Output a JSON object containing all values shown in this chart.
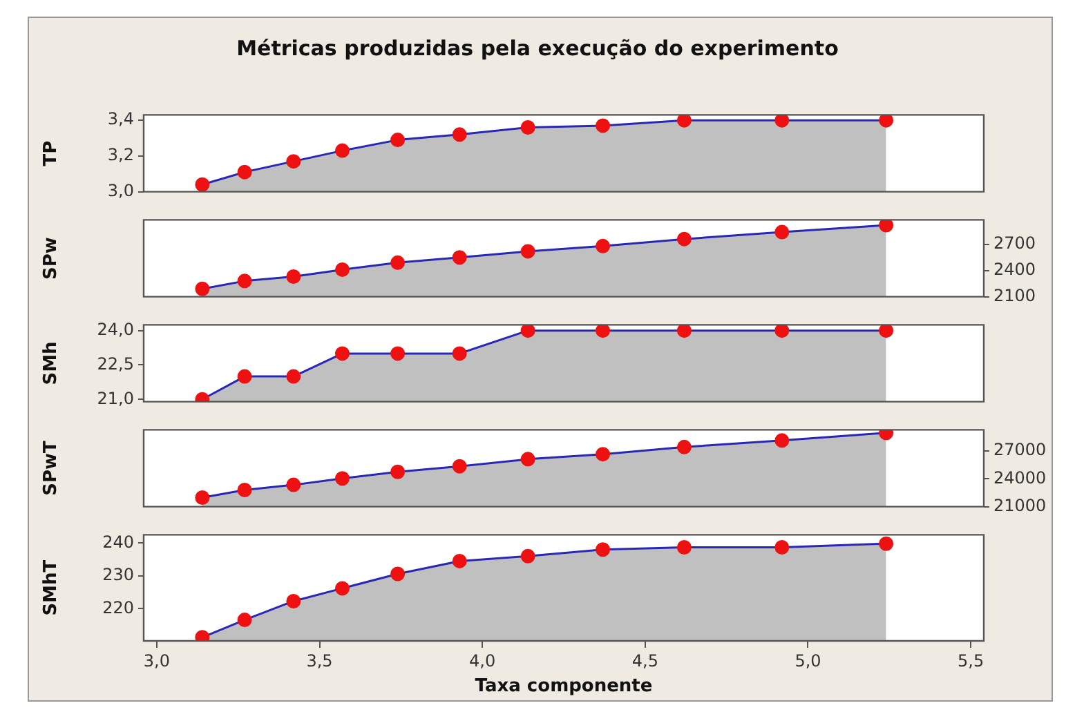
{
  "chart_data": [
    {
      "type": "area",
      "title": "Métricas produzidas pela execução do experimento",
      "ylabel": "TP",
      "x": [
        3.14,
        3.27,
        3.42,
        3.57,
        3.74,
        3.93,
        4.14,
        4.37,
        4.62,
        4.92,
        5.24
      ],
      "series": [
        {
          "color": "#c0c0c0",
          "values": [
            3.04,
            3.11,
            3.17,
            3.23,
            3.29,
            3.32,
            3.36,
            3.37,
            3.4,
            3.4,
            3.4
          ]
        }
      ],
      "xlim": [
        2.96,
        5.54
      ],
      "ylim": [
        3.0,
        3.43
      ],
      "yticks": [
        {
          "value": 3.0,
          "label": "3,0"
        },
        {
          "value": 3.2,
          "label": "3,2"
        },
        {
          "value": 3.4,
          "label": "3,4"
        }
      ],
      "marker": "circle",
      "tick_labels": "y"
    },
    {
      "type": "area",
      "ylabel": "SPw",
      "x": [
        3.14,
        3.27,
        3.42,
        3.57,
        3.74,
        3.93,
        4.14,
        4.37,
        4.62,
        4.92,
        5.24
      ],
      "series": [
        {
          "color": "#c0c0c0",
          "axis": "y2",
          "values": [
            2190,
            2280,
            2330,
            2410,
            2490,
            2550,
            2620,
            2680,
            2760,
            2840,
            2920
          ]
        }
      ],
      "xlim": [
        2.96,
        5.54
      ],
      "y2lim": [
        2100,
        2980
      ],
      "y2ticks": [
        2100,
        2400,
        2700
      ],
      "marker": "circle",
      "tick_labels": "y"
    },
    {
      "type": "area",
      "ylabel": "SMh",
      "x": [
        3.14,
        3.27,
        3.42,
        3.57,
        3.74,
        3.93,
        4.14,
        4.37,
        4.62,
        4.92,
        5.24
      ],
      "series": [
        {
          "color": "#c0c0c0",
          "values": [
            21,
            22,
            22,
            23,
            23,
            23,
            24,
            24,
            24,
            24,
            24
          ]
        }
      ],
      "xlim": [
        2.96,
        5.54
      ],
      "ylim": [
        20.9,
        24.25
      ],
      "yticks": [
        {
          "value": 21,
          "label": "21,0"
        },
        {
          "value": 22.5,
          "label": "22,5"
        },
        {
          "value": 24,
          "label": "24,0"
        }
      ],
      "marker": "circle",
      "tick_labels": "y"
    },
    {
      "type": "area",
      "ylabel": "SPwT",
      "x": [
        3.14,
        3.27,
        3.42,
        3.57,
        3.74,
        3.93,
        4.14,
        4.37,
        4.62,
        4.92,
        5.24
      ],
      "series": [
        {
          "color": "#c0c0c0",
          "axis": "y2",
          "values": [
            21980,
            22800,
            23350,
            24050,
            24760,
            25360,
            26130,
            26670,
            27440,
            28150,
            28970
          ]
        }
      ],
      "xlim": [
        2.96,
        5.54
      ],
      "y2lim": [
        21000,
        29300
      ],
      "y2ticks": [
        21000,
        24000,
        27000
      ],
      "marker": "circle",
      "tick_labels": "y"
    },
    {
      "type": "area",
      "ylabel": "SMhT",
      "xlabel": "Taxa componente",
      "x": [
        3.14,
        3.27,
        3.42,
        3.57,
        3.74,
        3.93,
        4.14,
        4.37,
        4.62,
        4.92,
        5.24
      ],
      "series": [
        {
          "color": "#c0c0c0",
          "values": [
            211.3,
            216.6,
            222.3,
            226.2,
            230.6,
            234.5,
            236,
            238,
            238.7,
            238.7,
            239.8
          ]
        }
      ],
      "xlim": [
        2.96,
        5.54
      ],
      "xticks": [
        {
          "value": 3.0,
          "label": "3,0"
        },
        {
          "value": 3.5,
          "label": "3,5"
        },
        {
          "value": 4.0,
          "label": "4,0"
        },
        {
          "value": 4.5,
          "label": "4,5"
        },
        {
          "value": 5.0,
          "label": "5,0"
        },
        {
          "value": 5.5,
          "label": "5,5"
        }
      ],
      "ylim": [
        210.2,
        242.5
      ],
      "yticks": [
        220,
        230,
        240
      ],
      "marker": "circle"
    }
  ]
}
